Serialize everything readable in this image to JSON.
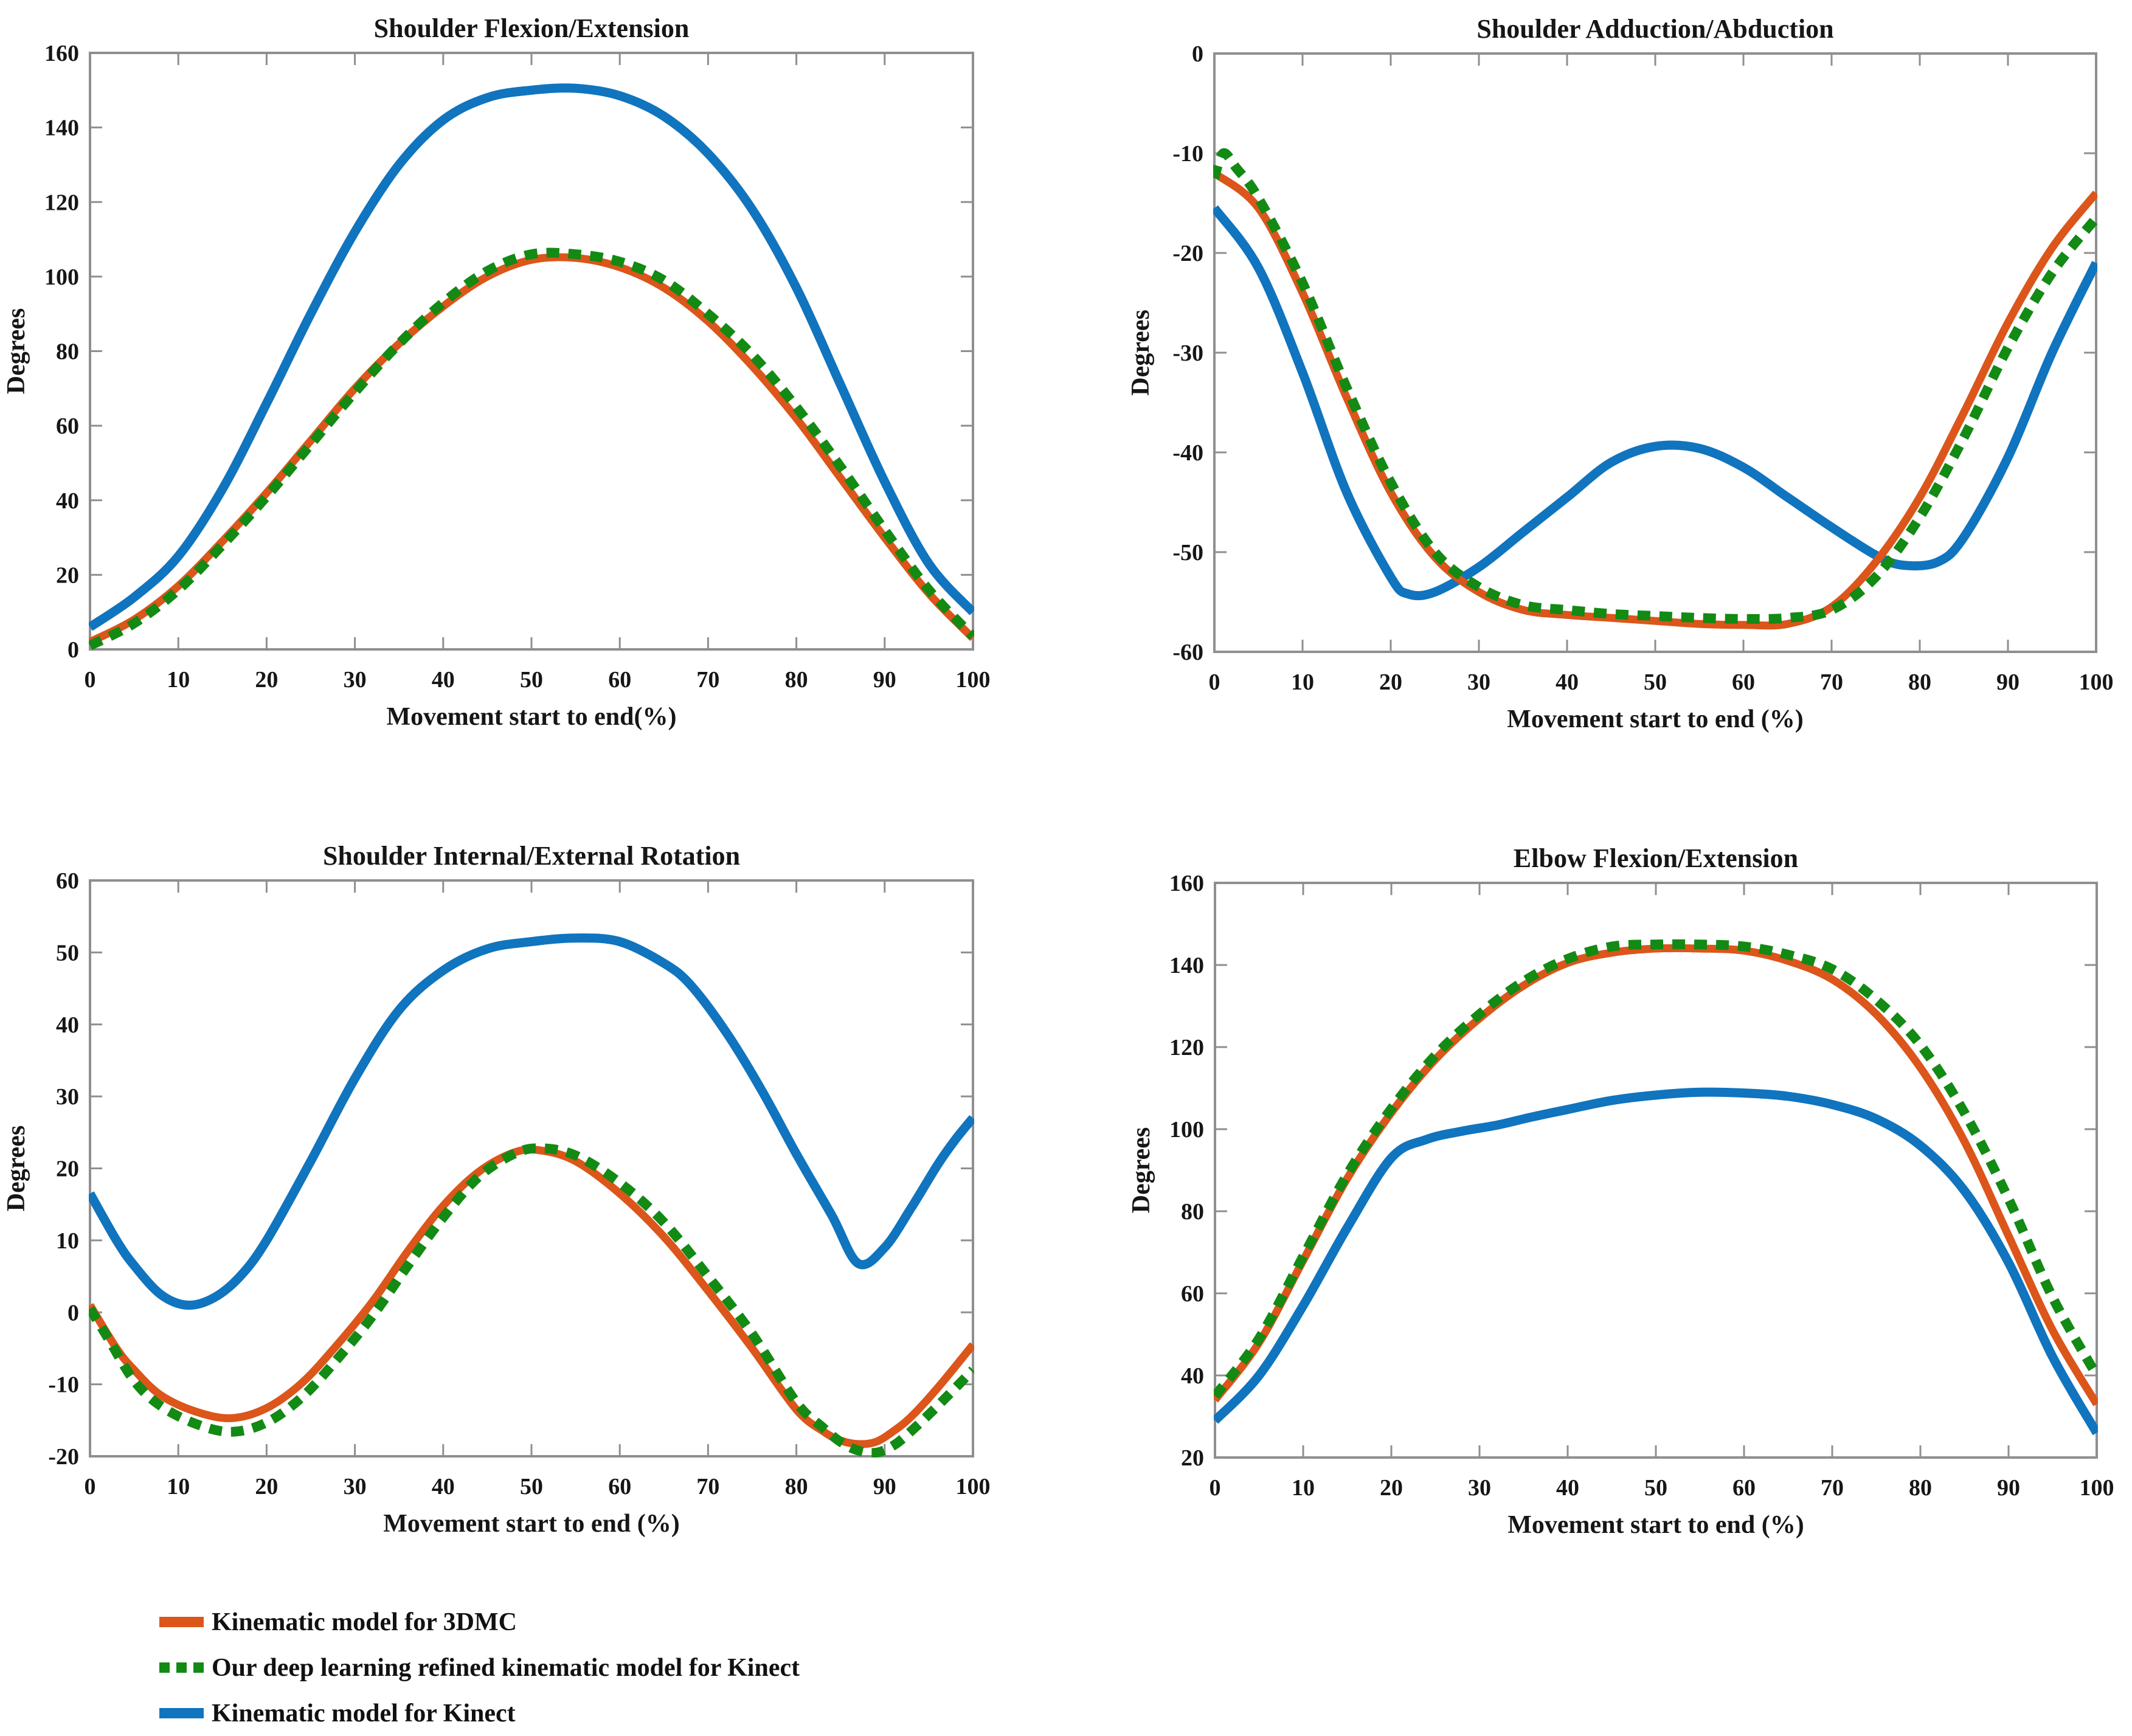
{
  "figure": {
    "background": "#ffffff"
  },
  "colors": {
    "orange": "#DC551A",
    "green": "#128A14",
    "blue": "#1074BE",
    "axis": "#8F8F8F",
    "text": "#161616"
  },
  "legend": {
    "position": "bottom-left",
    "items": [
      {
        "label": "Kinematic model for 3DMC",
        "color_key": "orange",
        "style": "solid"
      },
      {
        "label": "Our deep learning refined kinematic model for Kinect",
        "color_key": "green",
        "style": "dotted"
      },
      {
        "label": "Kinematic model for Kinect",
        "color_key": "blue",
        "style": "solid"
      }
    ]
  },
  "chart_data": [
    {
      "type": "line",
      "id": "shoulder-flexion-extension",
      "title": "Shoulder Flexion/Extension",
      "xlabel": "Movement start to end(%)",
      "ylabel": "Degrees",
      "xlim": [
        0,
        100
      ],
      "ylim": [
        0,
        160
      ],
      "xticks": [
        0,
        10,
        20,
        30,
        40,
        50,
        60,
        70,
        80,
        90,
        100
      ],
      "yticks": [
        0,
        20,
        40,
        60,
        80,
        100,
        120,
        140,
        160
      ],
      "grid": false,
      "series": [
        {
          "name": "Kinematic model for Kinect",
          "color_key": "blue",
          "dash": "solid",
          "x": [
            0,
            5,
            10,
            15,
            20,
            25,
            30,
            35,
            40,
            45,
            50,
            55,
            60,
            65,
            70,
            75,
            80,
            85,
            90,
            95,
            100
          ],
          "y": [
            6,
            14,
            25,
            43,
            66,
            90,
            112,
            130,
            142,
            148,
            150,
            150.5,
            148.5,
            143,
            133,
            118,
            97,
            71,
            45,
            23,
            10
          ]
        },
        {
          "name": "Kinematic model for 3DMC",
          "color_key": "orange",
          "dash": "solid",
          "x": [
            0,
            5,
            10,
            15,
            20,
            25,
            30,
            35,
            40,
            45,
            50,
            55,
            60,
            65,
            70,
            75,
            80,
            85,
            90,
            95,
            100
          ],
          "y": [
            2,
            8,
            17,
            29,
            42,
            56,
            70,
            82,
            92,
            100,
            104.5,
            105,
            102.5,
            97,
            88,
            76,
            62,
            46,
            30,
            15,
            3
          ]
        },
        {
          "name": "Our deep learning refined kinematic model for Kinect",
          "color_key": "green",
          "dash": "dotted",
          "x": [
            0,
            5,
            10,
            15,
            20,
            25,
            30,
            35,
            40,
            45,
            50,
            55,
            60,
            65,
            70,
            75,
            80,
            85,
            90,
            95,
            100
          ],
          "y": [
            1,
            7,
            16,
            28,
            41,
            55,
            69,
            82,
            93,
            101.5,
            106,
            106,
            104,
            99,
            90,
            79,
            65,
            49,
            32,
            16,
            3.5
          ]
        }
      ]
    },
    {
      "type": "line",
      "id": "shoulder-adduction-abduction",
      "title": "Shoulder Adduction/Abduction",
      "xlabel": "Movement start to end (%)",
      "ylabel": "Degrees",
      "xlim": [
        0,
        100
      ],
      "ylim": [
        -60,
        0
      ],
      "xticks": [
        0,
        10,
        20,
        30,
        40,
        50,
        60,
        70,
        80,
        90,
        100
      ],
      "yticks": [
        0,
        -10,
        -20,
        -30,
        -40,
        -50,
        -60
      ],
      "grid": false,
      "series": [
        {
          "name": "Kinematic model for Kinect",
          "color_key": "blue",
          "dash": "solid",
          "x": [
            0,
            5,
            10,
            15,
            20,
            22,
            25,
            30,
            35,
            40,
            45,
            50,
            55,
            60,
            65,
            70,
            75,
            78,
            82,
            85,
            90,
            95,
            100
          ],
          "y": [
            -15.5,
            -21.5,
            -32,
            -44,
            -52.5,
            -54.2,
            -54,
            -51.5,
            -48,
            -44.5,
            -41,
            -39.4,
            -39.6,
            -41.5,
            -44.5,
            -47.5,
            -50.3,
            -51.3,
            -51,
            -48.5,
            -40.5,
            -30,
            -21
          ]
        },
        {
          "name": "Kinematic model for 3DMC",
          "color_key": "orange",
          "dash": "solid",
          "x": [
            0,
            5,
            10,
            15,
            20,
            25,
            30,
            35,
            40,
            45,
            50,
            55,
            60,
            65,
            70,
            75,
            80,
            85,
            90,
            95,
            100
          ],
          "y": [
            -12,
            -15.5,
            -24,
            -34.5,
            -44,
            -50.5,
            -54,
            -55.8,
            -56.3,
            -56.6,
            -56.9,
            -57.2,
            -57.3,
            -57.2,
            -55.5,
            -51,
            -44.5,
            -36,
            -27,
            -19.5,
            -14
          ]
        },
        {
          "name": "Our deep learning refined kinematic model for Kinect",
          "color_key": "green",
          "dash": "dotted",
          "x": [
            0,
            1,
            2.5,
            5,
            10,
            15,
            20,
            25,
            30,
            35,
            40,
            45,
            50,
            55,
            60,
            65,
            70,
            75,
            80,
            85,
            90,
            95,
            100
          ],
          "y": [
            -12.5,
            -10,
            -11.5,
            -14.5,
            -23,
            -33.5,
            -43,
            -50,
            -53.5,
            -55.3,
            -55.8,
            -56.2,
            -56.4,
            -56.6,
            -56.7,
            -56.6,
            -55.8,
            -52.5,
            -46.5,
            -38.5,
            -29.5,
            -22,
            -16.5
          ]
        }
      ]
    },
    {
      "type": "line",
      "id": "shoulder-internal-external-rotation",
      "title": "Shoulder Internal/External Rotation",
      "xlabel": "Movement start to end (%)",
      "ylabel": "Degrees",
      "xlim": [
        0,
        100
      ],
      "ylim": [
        -20,
        60
      ],
      "xticks": [
        0,
        10,
        20,
        30,
        40,
        50,
        60,
        70,
        80,
        90,
        100
      ],
      "yticks": [
        -20,
        -10,
        0,
        10,
        20,
        30,
        40,
        50,
        60
      ],
      "grid": false,
      "series": [
        {
          "name": "Kinematic model for Kinect",
          "color_key": "blue",
          "dash": "solid",
          "x": [
            0,
            3,
            5,
            8,
            11,
            14,
            17,
            20,
            25,
            30,
            35,
            40,
            45,
            50,
            55,
            60,
            65,
            68,
            72,
            76,
            80,
            84,
            87,
            90,
            93,
            96,
            98,
            100
          ],
          "y": [
            16.5,
            10,
            6.5,
            2.5,
            1,
            2,
            5,
            10,
            21,
            32.5,
            42,
            47.5,
            50.5,
            51.5,
            52,
            51.5,
            48.5,
            45.5,
            39,
            31,
            22,
            13.5,
            6.8,
            9,
            14.5,
            20.5,
            24,
            27
          ]
        },
        {
          "name": "Kinematic model for 3DMC",
          "color_key": "orange",
          "dash": "solid",
          "x": [
            0,
            3,
            5,
            8,
            12,
            16,
            20,
            24,
            28,
            32,
            36,
            40,
            44,
            48,
            51,
            55,
            60,
            65,
            70,
            75,
            80,
            83,
            85,
            87,
            89,
            91,
            93,
            96,
            100
          ],
          "y": [
            1,
            -5,
            -8,
            -11.5,
            -13.8,
            -14.7,
            -13.3,
            -9.8,
            -4.5,
            1.5,
            8.5,
            14.8,
            19.5,
            22.2,
            22.5,
            21,
            16.5,
            10.5,
            3,
            -5,
            -13.5,
            -16.5,
            -17.8,
            -18.3,
            -18,
            -16.5,
            -14.5,
            -10.5,
            -4.5
          ]
        },
        {
          "name": "Our deep learning refined kinematic model for Kinect",
          "color_key": "green",
          "dash": "dotted",
          "x": [
            0,
            2,
            5,
            8,
            12,
            16,
            20,
            24,
            28,
            32,
            36,
            40,
            44,
            48,
            51,
            55,
            60,
            65,
            70,
            75,
            80,
            83,
            85,
            87,
            89,
            91,
            93,
            96,
            100
          ],
          "y": [
            0.5,
            -3.5,
            -9.5,
            -13,
            -15.5,
            -16.6,
            -15.3,
            -11.8,
            -6.5,
            -0.5,
            6.5,
            13.2,
            18.8,
            22,
            22.8,
            21.8,
            18,
            12.5,
            5,
            -3,
            -12.5,
            -16,
            -18,
            -19.2,
            -19.5,
            -18.5,
            -16.5,
            -13,
            -8
          ]
        }
      ]
    },
    {
      "type": "line",
      "id": "elbow-flexion-extension",
      "title": "Elbow Flexion/Extension",
      "xlabel": "Movement start to end (%)",
      "ylabel": "Degrees",
      "xlim": [
        0,
        100
      ],
      "ylim": [
        20,
        160
      ],
      "xticks": [
        0,
        10,
        20,
        30,
        40,
        50,
        60,
        70,
        80,
        90,
        100
      ],
      "yticks": [
        20,
        40,
        60,
        80,
        100,
        120,
        140,
        160
      ],
      "grid": false,
      "series": [
        {
          "name": "Kinematic model for Kinect",
          "color_key": "blue",
          "dash": "solid",
          "x": [
            0,
            5,
            10,
            15,
            20,
            24,
            28,
            32,
            36,
            40,
            45,
            50,
            55,
            60,
            65,
            70,
            75,
            80,
            85,
            90,
            95,
            100
          ],
          "y": [
            29,
            40,
            57,
            76,
            93,
            97.5,
            99.5,
            101,
            103,
            104.8,
            107,
            108.3,
            109,
            108.8,
            108,
            106,
            102.5,
            96,
            85,
            67.5,
            44.5,
            26
          ]
        },
        {
          "name": "Kinematic model for 3DMC",
          "color_key": "orange",
          "dash": "solid",
          "x": [
            0,
            5,
            10,
            15,
            20,
            25,
            30,
            35,
            40,
            45,
            50,
            55,
            60,
            65,
            70,
            75,
            80,
            85,
            90,
            95,
            100
          ],
          "y": [
            34,
            48,
            68,
            88,
            104,
            117,
            127,
            135,
            140.5,
            143,
            144,
            144,
            143.5,
            141,
            136.5,
            128,
            115,
            97,
            74,
            51,
            33
          ]
        },
        {
          "name": "Our deep learning refined kinematic model for Kinect",
          "color_key": "green",
          "dash": "dotted",
          "x": [
            0,
            5,
            10,
            15,
            20,
            25,
            30,
            35,
            40,
            45,
            50,
            55,
            60,
            65,
            70,
            75,
            80,
            85,
            90,
            95,
            100
          ],
          "y": [
            35,
            49,
            69,
            89,
            105,
            118,
            128,
            136,
            141.5,
            144.5,
            145,
            145,
            144.5,
            142.5,
            139,
            131.5,
            120.5,
            104,
            83,
            59,
            40
          ]
        }
      ]
    }
  ]
}
